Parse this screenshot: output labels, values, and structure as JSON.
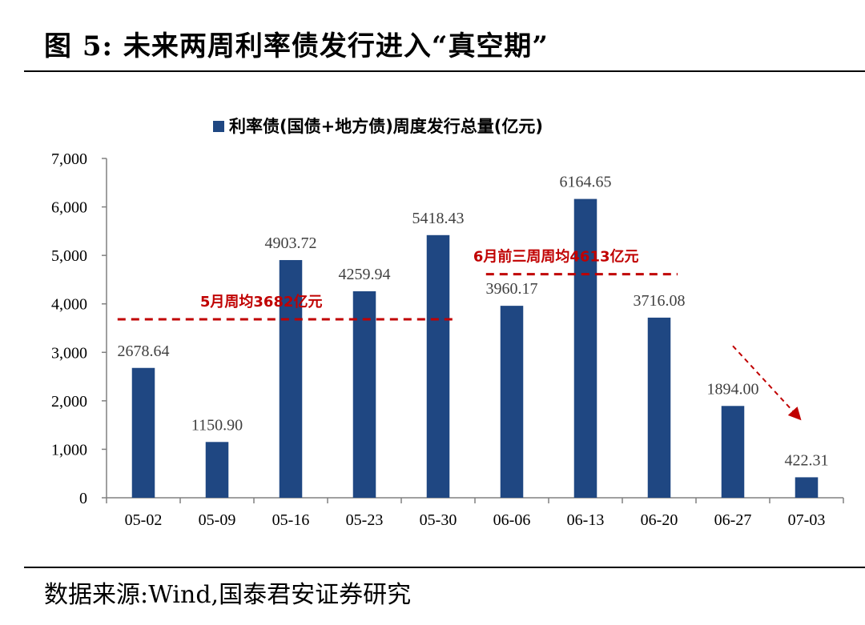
{
  "figure": {
    "title": "图 5:  未来两周利率债发行进入“真空期”",
    "source": "数据来源:Wind,国泰君安证券研究"
  },
  "chart_data": {
    "type": "bar",
    "legend": {
      "label": "利率债(国债+地方债)周度发行总量(亿元)",
      "position": "top"
    },
    "categories": [
      "05-02",
      "05-09",
      "05-16",
      "05-23",
      "05-30",
      "06-06",
      "06-13",
      "06-20",
      "06-27",
      "07-03"
    ],
    "series": [
      {
        "name": "利率债(国债+地方债)周度发行总量(亿元)",
        "values": [
          2678.64,
          1150.9,
          4903.72,
          4259.94,
          5418.43,
          3960.17,
          6164.65,
          3716.08,
          1894.0,
          422.31
        ],
        "value_labels": [
          "2678.64",
          "1150.90",
          "4903.72",
          "4259.94",
          "5418.43",
          "3960.17",
          "6164.65",
          "3716.08",
          "1894.00",
          "422.31"
        ],
        "color": "#1f4782"
      }
    ],
    "ylim": [
      0,
      7000
    ],
    "yticks": [
      0,
      1000,
      2000,
      3000,
      4000,
      5000,
      6000,
      7000
    ],
    "ytick_labels": [
      "0",
      "1,000",
      "2,000",
      "3,000",
      "4,000",
      "5,000",
      "6,000",
      "7,000"
    ],
    "grid": false,
    "annotations": [
      {
        "type": "hline",
        "label": "5月周均3682亿元",
        "value": 3682,
        "from_category": "05-02",
        "to_category": "05-30",
        "color": "#c00000"
      },
      {
        "type": "hline",
        "label": "6月前三周周均4613亿元",
        "value": 4613,
        "from_category": "06-06",
        "to_category": "06-20",
        "color": "#c00000"
      },
      {
        "type": "arrow",
        "from_category": "06-27",
        "to_category": "07-03",
        "color": "#c00000"
      }
    ]
  }
}
